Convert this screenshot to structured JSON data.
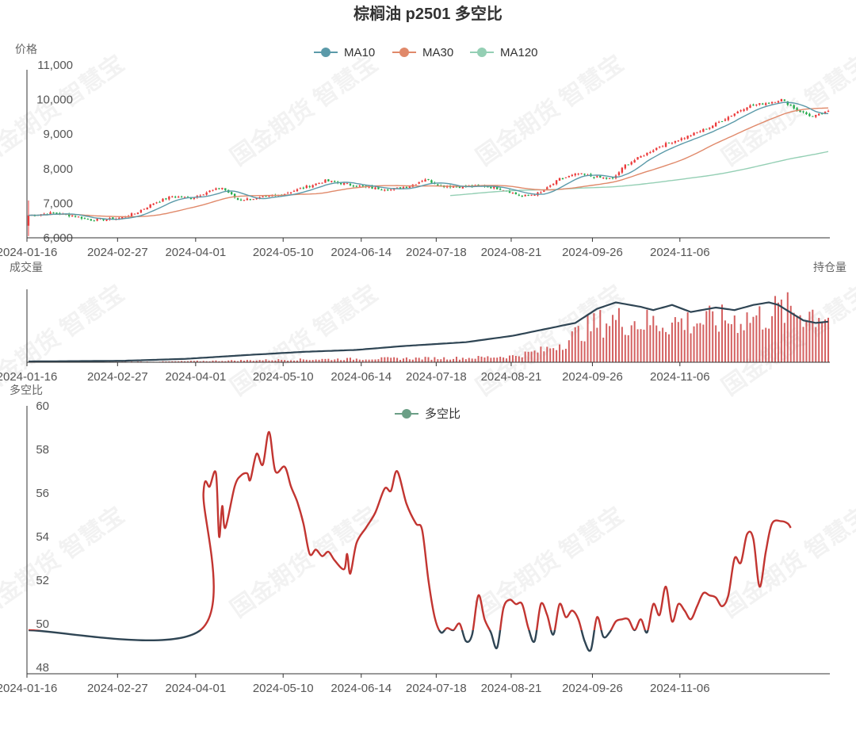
{
  "title": "棕榈油 p2501 多空比",
  "watermark": "国金期货 智慧宝",
  "colors": {
    "up": "#eb3b3b",
    "down": "#22ab4a",
    "ma10": "#5b9aa9",
    "ma30": "#e0896a",
    "ma120": "#94cfb4",
    "oi": "#2f4554",
    "ratio_high": "#c23531",
    "ratio_low": "#2f4554",
    "axis": "#333333"
  },
  "chart_data": [
    {
      "type": "candlestick",
      "ylabel": "价格",
      "ylim": [
        6000,
        11000
      ],
      "yticks": [
        "6,000",
        "7,000",
        "8,000",
        "9,000",
        "10,000",
        "11,000"
      ],
      "xticks": [
        "2024-01-16",
        "2024-02-27",
        "2024-04-01",
        "2024-05-10",
        "2024-06-14",
        "2024-07-18",
        "2024-08-21",
        "2024-09-26",
        "2024-11-06"
      ],
      "legend": [
        "MA10",
        "MA30",
        "MA120"
      ],
      "close_anchors": [
        [
          0,
          6650
        ],
        [
          8,
          6720
        ],
        [
          14,
          6640
        ],
        [
          20,
          6520
        ],
        [
          28,
          6550
        ],
        [
          34,
          6700
        ],
        [
          40,
          7000
        ],
        [
          46,
          7200
        ],
        [
          52,
          7150
        ],
        [
          58,
          7350
        ],
        [
          62,
          7450
        ],
        [
          67,
          7100
        ],
        [
          74,
          7150
        ],
        [
          81,
          7250
        ],
        [
          88,
          7450
        ],
        [
          95,
          7650
        ],
        [
          102,
          7550
        ],
        [
          109,
          7450
        ],
        [
          116,
          7400
        ],
        [
          122,
          7500
        ],
        [
          127,
          7700
        ],
        [
          132,
          7500
        ],
        [
          138,
          7480
        ],
        [
          146,
          7500
        ],
        [
          152,
          7400
        ],
        [
          158,
          7200
        ],
        [
          164,
          7300
        ],
        [
          170,
          7700
        ],
        [
          176,
          7850
        ],
        [
          182,
          7750
        ],
        [
          187,
          7700
        ],
        [
          191,
          8100
        ],
        [
          196,
          8350
        ],
        [
          202,
          8650
        ],
        [
          210,
          8900
        ],
        [
          218,
          9200
        ],
        [
          224,
          9500
        ],
        [
          230,
          9800
        ],
        [
          236,
          9900
        ],
        [
          241,
          10000
        ],
        [
          246,
          9700
        ],
        [
          251,
          9500
        ],
        [
          256,
          9650
        ]
      ],
      "first_candle": {
        "open": 6350,
        "high": 7080,
        "low": 6050,
        "close": 6650
      },
      "ma120_start": 7120
    },
    {
      "type": "bar+line",
      "ylabel": "成交量",
      "y2label": "持仓量",
      "xticks": [
        "2024-01-16",
        "2024-02-27",
        "2024-04-01",
        "2024-05-10",
        "2024-06-14",
        "2024-07-18",
        "2024-08-21",
        "2024-09-26",
        "2024-11-06"
      ],
      "open_interest_anchors": [
        [
          0,
          0.0
        ],
        [
          30,
          0.01
        ],
        [
          50,
          0.04
        ],
        [
          70,
          0.1
        ],
        [
          88,
          0.15
        ],
        [
          105,
          0.18
        ],
        [
          120,
          0.24
        ],
        [
          140,
          0.3
        ],
        [
          155,
          0.4
        ],
        [
          165,
          0.5
        ],
        [
          175,
          0.6
        ],
        [
          182,
          0.82
        ],
        [
          188,
          0.92
        ],
        [
          196,
          0.85
        ],
        [
          200,
          0.8
        ],
        [
          206,
          0.88
        ],
        [
          212,
          0.77
        ],
        [
          220,
          0.84
        ],
        [
          226,
          0.8
        ],
        [
          232,
          0.88
        ],
        [
          237,
          0.92
        ],
        [
          240,
          0.88
        ],
        [
          244,
          0.76
        ],
        [
          248,
          0.64
        ],
        [
          252,
          0.6
        ],
        [
          256,
          0.62
        ]
      ],
      "volume_anchors": [
        [
          0,
          0.005
        ],
        [
          40,
          0.01
        ],
        [
          55,
          0.02
        ],
        [
          80,
          0.04
        ],
        [
          110,
          0.06
        ],
        [
          140,
          0.07
        ],
        [
          155,
          0.1
        ],
        [
          165,
          0.2
        ],
        [
          172,
          0.35
        ],
        [
          178,
          0.55
        ],
        [
          186,
          0.7
        ],
        [
          200,
          0.65
        ],
        [
          220,
          0.68
        ],
        [
          235,
          0.75
        ],
        [
          240,
          0.85
        ],
        [
          256,
          0.8
        ]
      ]
    },
    {
      "type": "line",
      "ylabel": "多空比",
      "ylim": [
        48,
        60
      ],
      "yticks": [
        "48",
        "50",
        "52",
        "54",
        "56",
        "58",
        "60"
      ],
      "legend": [
        "多空比"
      ],
      "threshold": 49.7,
      "xticks": [
        "2024-01-16",
        "2024-02-27",
        "2024-04-01",
        "2024-05-10",
        "2024-06-14",
        "2024-07-18",
        "2024-08-21",
        "2024-09-26",
        "2024-11-06"
      ],
      "ratio_anchors": [
        [
          0,
          49.7
        ],
        [
          55,
          49.7
        ],
        [
          56,
          56.0
        ],
        [
          58,
          56.3
        ],
        [
          60,
          56.9
        ],
        [
          61,
          54.0
        ],
        [
          62,
          55.4
        ],
        [
          63,
          54.4
        ],
        [
          66,
          56.3
        ],
        [
          68,
          56.8
        ],
        [
          70,
          56.9
        ],
        [
          71,
          56.6
        ],
        [
          73,
          57.8
        ],
        [
          75,
          57.3
        ],
        [
          77,
          58.8
        ],
        [
          79,
          57.0
        ],
        [
          82,
          57.2
        ],
        [
          84,
          56.3
        ],
        [
          86,
          55.6
        ],
        [
          88,
          54.6
        ],
        [
          90,
          53.2
        ],
        [
          92,
          53.4
        ],
        [
          94,
          53.1
        ],
        [
          96,
          53.3
        ],
        [
          98,
          52.9
        ],
        [
          101,
          52.5
        ],
        [
          102,
          53.2
        ],
        [
          103,
          52.3
        ],
        [
          105,
          53.7
        ],
        [
          108,
          54.4
        ],
        [
          111,
          55.1
        ],
        [
          114,
          56.2
        ],
        [
          116,
          56.1
        ],
        [
          118,
          57.0
        ],
        [
          121,
          55.5
        ],
        [
          124,
          54.6
        ],
        [
          126,
          54.3
        ],
        [
          128,
          52.0
        ],
        [
          130,
          50.3
        ],
        [
          132,
          49.6
        ],
        [
          134,
          49.8
        ],
        [
          136,
          49.7
        ],
        [
          138,
          50.0
        ],
        [
          140,
          49.2
        ],
        [
          142,
          49.5
        ],
        [
          144,
          51.3
        ],
        [
          146,
          50.2
        ],
        [
          148,
          49.6
        ],
        [
          150,
          48.9
        ],
        [
          152,
          50.7
        ],
        [
          154,
          51.1
        ],
        [
          156,
          50.9
        ],
        [
          158,
          50.9
        ],
        [
          160,
          49.8
        ],
        [
          162,
          49.2
        ],
        [
          164,
          50.9
        ],
        [
          166,
          50.4
        ],
        [
          168,
          49.5
        ],
        [
          170,
          50.9
        ],
        [
          172,
          50.3
        ],
        [
          174,
          50.6
        ],
        [
          176,
          50.2
        ],
        [
          178,
          49.2
        ],
        [
          180,
          48.8
        ],
        [
          182,
          50.3
        ],
        [
          184,
          49.4
        ],
        [
          186,
          49.6
        ],
        [
          188,
          50.1
        ],
        [
          190,
          50.2
        ],
        [
          192,
          50.2
        ],
        [
          194,
          49.7
        ],
        [
          196,
          50.2
        ],
        [
          198,
          49.6
        ],
        [
          200,
          50.9
        ],
        [
          202,
          50.4
        ],
        [
          204,
          51.7
        ],
        [
          206,
          50.1
        ],
        [
          208,
          50.9
        ],
        [
          210,
          50.6
        ],
        [
          212,
          50.2
        ],
        [
          214,
          50.8
        ],
        [
          216,
          51.4
        ],
        [
          218,
          51.3
        ],
        [
          220,
          51.2
        ],
        [
          222,
          50.8
        ],
        [
          224,
          51.3
        ],
        [
          226,
          53.0
        ],
        [
          228,
          52.8
        ],
        [
          230,
          54.1
        ],
        [
          232,
          53.9
        ],
        [
          234,
          51.7
        ],
        [
          236,
          53.3
        ],
        [
          238,
          54.6
        ],
        [
          241,
          54.7
        ],
        [
          243,
          54.6
        ],
        [
          244,
          54.4
        ]
      ]
    }
  ]
}
